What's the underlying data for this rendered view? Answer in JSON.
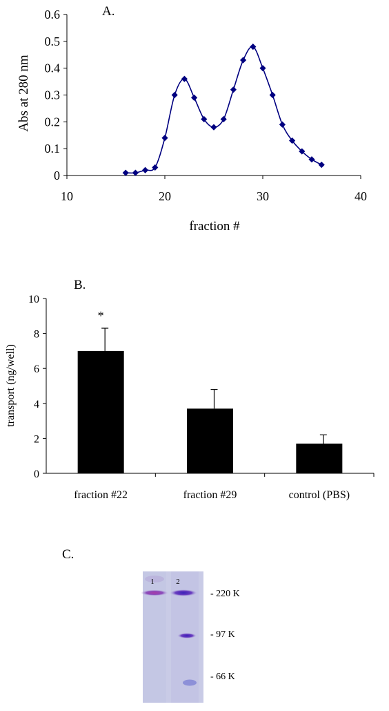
{
  "chart_data": [
    {
      "panel_label": "A.",
      "type": "line",
      "xlabel": "fraction #",
      "ylabel": "Abs at 280 nm",
      "xlim": [
        10,
        40
      ],
      "ylim": [
        0,
        0.6
      ],
      "x_ticks": [
        10,
        20,
        30,
        40
      ],
      "y_ticks": [
        0,
        0.1,
        0.2,
        0.3,
        0.4,
        0.5,
        0.6
      ],
      "marker": "diamond",
      "smooth": true,
      "color": "#000080",
      "series": [
        {
          "x": [
            16,
            17,
            18,
            19,
            20,
            21,
            22,
            23,
            24,
            25,
            26,
            27,
            28,
            29,
            30,
            31,
            32,
            33,
            34,
            35,
            36
          ],
          "y": [
            0.01,
            0.01,
            0.02,
            0.03,
            0.14,
            0.3,
            0.36,
            0.29,
            0.21,
            0.18,
            0.21,
            0.32,
            0.43,
            0.48,
            0.4,
            0.3,
            0.19,
            0.13,
            0.09,
            0.06,
            0.04
          ]
        }
      ]
    },
    {
      "panel_label": "B.",
      "type": "bar",
      "ylabel": "transport (ng/well)",
      "ylim": [
        0,
        10
      ],
      "y_ticks": [
        0,
        2,
        4,
        6,
        8,
        10
      ],
      "categories": [
        "fraction #22",
        "fraction #29",
        "control (PBS)"
      ],
      "values": [
        7.0,
        3.7,
        1.7
      ],
      "error_upper": [
        1.3,
        1.1,
        0.5
      ],
      "annotations": [
        {
          "category": "fraction #22",
          "text": "*"
        }
      ],
      "color": "#000000"
    }
  ],
  "gel": {
    "panel_label": "C.",
    "lane_labels": [
      "1",
      "2"
    ],
    "markers": [
      "- 220 K",
      "- 97 K",
      "- 66 K"
    ],
    "colors": {
      "background": "#c9cbe6",
      "band": "#7a3fb0",
      "band_dark": "#3a32a8"
    }
  }
}
